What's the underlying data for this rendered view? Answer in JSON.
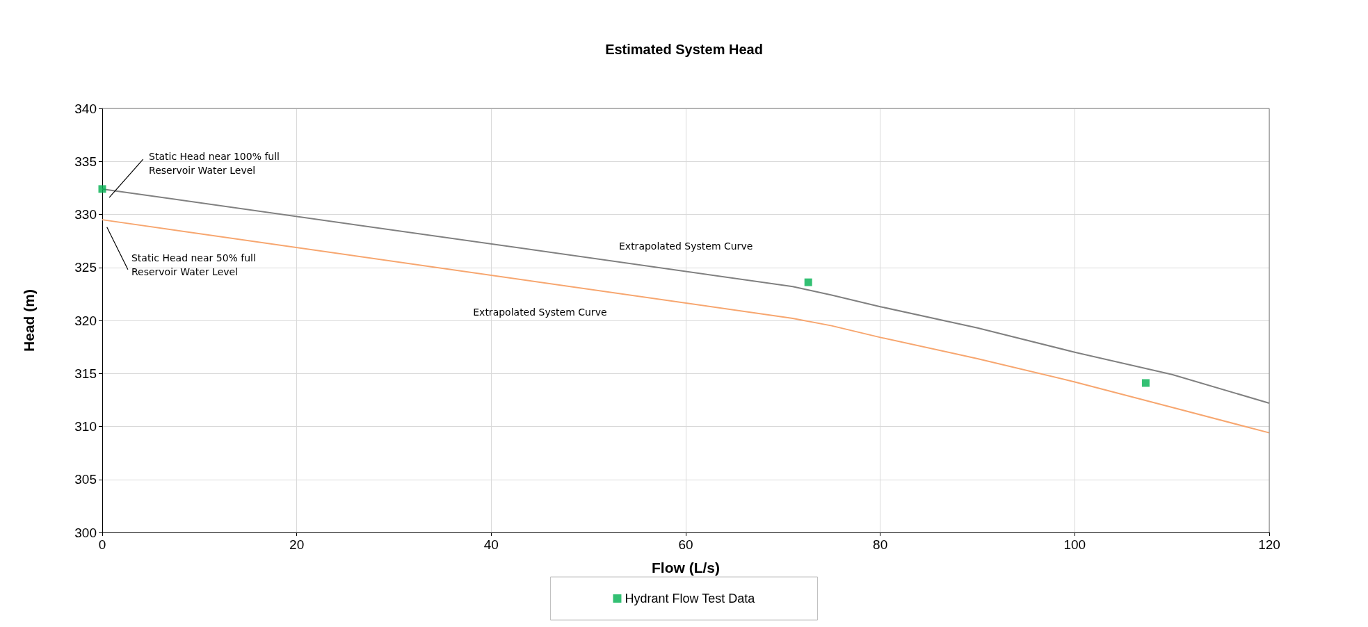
{
  "chart_data": {
    "type": "line",
    "title": "Estimated System Head",
    "xlabel": "Flow (L/s)",
    "ylabel": "Head (m)",
    "xlim": [
      0,
      120
    ],
    "xticks": [
      0,
      20,
      40,
      60,
      80,
      100,
      120
    ],
    "ylim": [
      300,
      340
    ],
    "yticks": [
      300,
      305,
      310,
      315,
      320,
      325,
      330,
      335,
      340
    ],
    "grid": true,
    "legend": "bottom",
    "marker": "none",
    "line_style": "solid",
    "series": [
      {
        "color": "#808080",
        "x": [
          0,
          71,
          75,
          80,
          90,
          100,
          110,
          120
        ],
        "values": [
          332.4,
          323.2,
          322.4,
          321.3,
          319.3,
          317.0,
          314.9,
          312.2
        ]
      },
      {
        "color": "#f7a66f",
        "x": [
          0,
          71,
          75,
          80,
          90,
          100,
          110,
          120
        ],
        "values": [
          329.5,
          320.2,
          319.5,
          318.4,
          316.4,
          314.2,
          311.8,
          309.4
        ]
      },
      {
        "type": "scatter",
        "name": "Hydrant Flow Test Data",
        "color": "#00b050",
        "marker": "square",
        "x": [
          0,
          72.6,
          107.3
        ],
        "values": [
          332.4,
          323.6,
          314.1
        ]
      }
    ],
    "annotations": [
      "Static Head near 100% full\nReservoir Water Level",
      "Static Head near 50% full\nReservoir Water Level",
      "Extrapolated System Curve",
      "Extrapolated System Curve"
    ]
  }
}
